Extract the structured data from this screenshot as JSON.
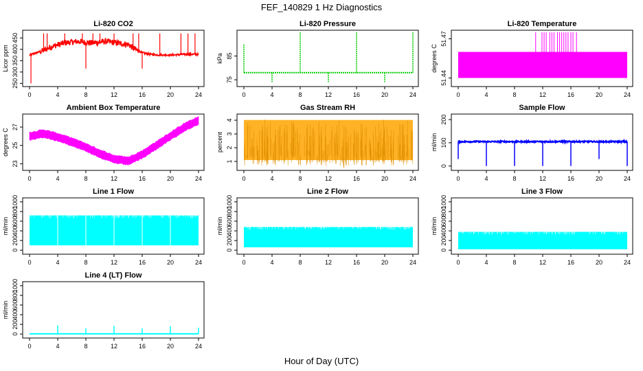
{
  "figure": {
    "title": "FEF_140829  1 Hz Diagnostics",
    "xlabel": "Hour of Day (UTC)"
  },
  "chart_data": [
    {
      "type": "line",
      "title": "Li-820 CO2",
      "xlabel": "",
      "ylabel": "Licor ppm",
      "color": "#ff0000",
      "xlim": [
        0,
        24
      ],
      "ylim": [
        245,
        475
      ],
      "x_ticks": [
        0,
        4,
        8,
        12,
        16,
        20,
        24
      ],
      "y_ticks": [
        250,
        300,
        350,
        400,
        450
      ],
      "series": [
        {
          "x": [
            0,
            1,
            2,
            3,
            4,
            5,
            6,
            7,
            8,
            9,
            10,
            11,
            12,
            13,
            14,
            15,
            16,
            17,
            18,
            19,
            20,
            21,
            22,
            23,
            24
          ],
          "y": [
            375,
            385,
            395,
            410,
            420,
            428,
            432,
            435,
            430,
            428,
            432,
            435,
            430,
            425,
            422,
            400,
            385,
            378,
            376,
            375,
            375,
            376,
            378,
            378,
            378
          ]
        }
      ]
    },
    {
      "type": "line",
      "title": "Li-820 Pressure",
      "xlabel": "",
      "ylabel": "kPa",
      "color": "#00cc00",
      "xlim": [
        0,
        24
      ],
      "ylim": [
        73,
        95
      ],
      "x_ticks": [
        0,
        4,
        8,
        12,
        16,
        20,
        24
      ],
      "y_ticks": [
        75,
        85
      ],
      "series": [
        {
          "x": [
            0,
            24
          ],
          "y": [
            78,
            78
          ]
        }
      ]
    },
    {
      "type": "area",
      "title": "Li-820 Temperature",
      "xlabel": "",
      "ylabel": "degrees C",
      "color": "#ff00ff",
      "xlim": [
        0,
        24
      ],
      "ylim": [
        51.435,
        51.475
      ],
      "x_ticks": [
        0,
        4,
        8,
        12,
        16,
        20,
        24
      ],
      "y_ticks": [
        51.44,
        51.47
      ],
      "series": [
        {
          "x": [
            0,
            24
          ],
          "y": [
            51.46,
            51.46
          ]
        }
      ]
    },
    {
      "type": "line",
      "title": "Ambient Box Temperature",
      "xlabel": "",
      "ylabel": "degrees C",
      "color": "#ff00ff",
      "xlim": [
        0,
        24
      ],
      "ylim": [
        22.5,
        28.2
      ],
      "x_ticks": [
        0,
        4,
        8,
        12,
        16,
        20,
        24
      ],
      "y_ticks": [
        23,
        25,
        27
      ],
      "series": [
        {
          "x": [
            0,
            2,
            4,
            6,
            8,
            10,
            12,
            14,
            16,
            18,
            20,
            22,
            24
          ],
          "y": [
            26.0,
            26.3,
            25.9,
            25.4,
            24.8,
            24.1,
            23.5,
            23.3,
            24.0,
            25.0,
            26.0,
            27.0,
            27.7
          ]
        }
      ]
    },
    {
      "type": "scatter",
      "title": "Gas Stream RH",
      "xlabel": "",
      "ylabel": "percent",
      "color": "#ffa500",
      "xlim": [
        0,
        24
      ],
      "ylim": [
        0.5,
        4.3
      ],
      "x_ticks": [
        0,
        4,
        8,
        12,
        16,
        20,
        24
      ],
      "y_ticks": [
        1,
        2,
        3,
        4
      ],
      "series": [
        {
          "x": [
            0,
            24
          ],
          "y_range": [
            1.0,
            4.0
          ]
        }
      ]
    },
    {
      "type": "line",
      "title": "Sample Flow",
      "xlabel": "",
      "ylabel": "ml/min",
      "color": "#0000ff",
      "xlim": [
        0,
        24
      ],
      "ylim": [
        -10,
        215
      ],
      "x_ticks": [
        0,
        4,
        8,
        12,
        16,
        20,
        24
      ],
      "y_ticks": [
        0,
        100,
        200
      ],
      "series": [
        {
          "x": [
            0,
            24
          ],
          "y": [
            105,
            105
          ]
        }
      ]
    },
    {
      "type": "area",
      "title": "Line 1 Flow",
      "xlabel": "",
      "ylabel": "ml/min",
      "color": "#00ffff",
      "xlim": [
        0,
        24
      ],
      "ylim": [
        -40,
        1040
      ],
      "x_ticks": [
        0,
        4,
        8,
        12,
        16,
        20,
        24
      ],
      "y_ticks": [
        0,
        200,
        400,
        600,
        800,
        1000
      ],
      "series": [
        {
          "x": [
            0,
            24
          ],
          "y_low": [
            100,
            100
          ],
          "y_high": [
            720,
            720
          ]
        }
      ]
    },
    {
      "type": "area",
      "title": "Line 2 Flow",
      "xlabel": "",
      "ylabel": "ml/min",
      "color": "#00ffff",
      "xlim": [
        0,
        24
      ],
      "ylim": [
        -40,
        1040
      ],
      "x_ticks": [
        0,
        4,
        8,
        12,
        16,
        20,
        24
      ],
      "y_ticks": [
        0,
        200,
        400,
        600,
        800,
        1000
      ],
      "series": [
        {
          "x": [
            0,
            24
          ],
          "y_low": [
            60,
            60
          ],
          "y_high": [
            480,
            480
          ]
        }
      ]
    },
    {
      "type": "area",
      "title": "Line 3 Flow",
      "xlabel": "",
      "ylabel": "ml/min",
      "color": "#00ffff",
      "xlim": [
        0,
        24
      ],
      "ylim": [
        -40,
        1040
      ],
      "x_ticks": [
        0,
        4,
        8,
        12,
        16,
        20,
        24
      ],
      "y_ticks": [
        0,
        200,
        400,
        600,
        800,
        1000
      ],
      "series": [
        {
          "x": [
            0,
            24
          ],
          "y_low": [
            20,
            20
          ],
          "y_high": [
            380,
            380
          ]
        }
      ]
    },
    {
      "type": "line",
      "title": "Line 4 (LT) Flow",
      "xlabel": "",
      "ylabel": "ml/min",
      "color": "#00ffff",
      "xlim": [
        0,
        24
      ],
      "ylim": [
        -40,
        1040
      ],
      "x_ticks": [
        0,
        4,
        8,
        12,
        16,
        20,
        24
      ],
      "y_ticks": [
        0,
        200,
        400,
        600,
        800,
        1000
      ],
      "series": [
        {
          "x": [
            0,
            24
          ],
          "y": [
            5,
            5
          ]
        }
      ]
    }
  ]
}
